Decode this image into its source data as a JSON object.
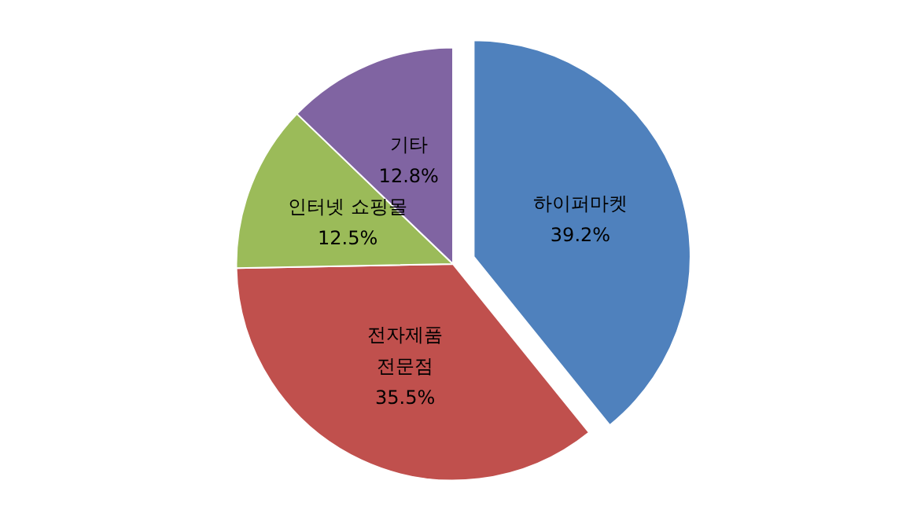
{
  "chart_data": {
    "type": "pie",
    "categories": [
      "하이퍼마켓",
      "전자제품\n전문점",
      "인터넷 쇼핑몰",
      "기타"
    ],
    "values": [
      39.2,
      35.5,
      12.5,
      12.8
    ],
    "value_labels": [
      "39.2%",
      "35.5%",
      "12.5%",
      "12.8%"
    ],
    "colors": [
      "#4f81bd",
      "#c0504d",
      "#9bbb59",
      "#8064a2"
    ],
    "legend": false
  }
}
